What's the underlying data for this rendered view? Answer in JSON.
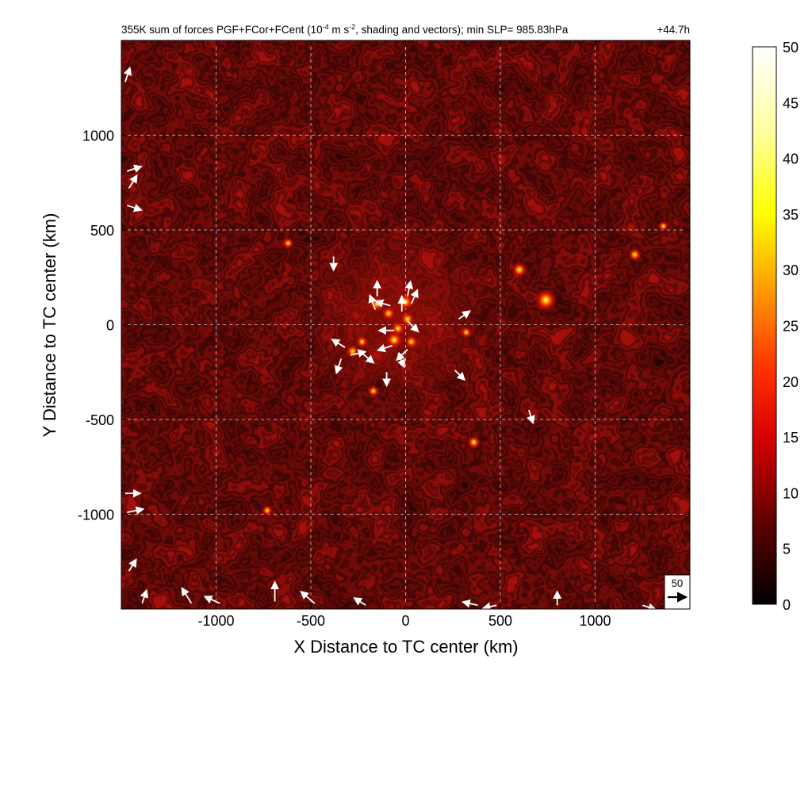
{
  "chart_data": {
    "type": "heatmap",
    "title_parts": {
      "before_exp": "355K sum of forces PGF+FCor+FCent (10",
      "exp1": "-4",
      "mid": " m s",
      "exp2": "-2",
      "after": ", shading and vectors); min SLP= 985.83hPa"
    },
    "time_label": "+44.7h",
    "xlabel": "X Distance to TC center (km)",
    "ylabel": "Y Distance to TC center (km)",
    "xlim": [
      -1500,
      1500
    ],
    "ylim": [
      -1500,
      1500
    ],
    "x_ticks": [
      -1000,
      -500,
      0,
      500,
      1000
    ],
    "y_ticks": [
      -1000,
      -500,
      0,
      500,
      1000
    ],
    "x_tick_labels": [
      "-1000",
      "-500",
      "0",
      "500",
      "1000"
    ],
    "y_tick_labels": [
      "-1000",
      "-500",
      "0",
      "500",
      "1000"
    ],
    "grid": true,
    "colorbar": {
      "range": [
        0,
        50
      ],
      "ticks": [
        0,
        5,
        10,
        15,
        20,
        25,
        30,
        35,
        40,
        45,
        50
      ],
      "tick_labels": [
        "0",
        "5",
        "10",
        "15",
        "20",
        "25",
        "30",
        "35",
        "40",
        "45",
        "50"
      ],
      "colormap": "hot",
      "colors": [
        "#000000",
        "#7a0000",
        "#ff0000",
        "#ff8a00",
        "#ffff00",
        "#ffffff"
      ]
    },
    "reference_vector": {
      "label": "50",
      "magnitude": 50
    },
    "hotspots": [
      {
        "x": -150,
        "y": 110,
        "value": 14
      },
      {
        "x": -90,
        "y": 60,
        "value": 12
      },
      {
        "x": 0,
        "y": 120,
        "value": 16
      },
      {
        "x": 10,
        "y": 30,
        "value": 13
      },
      {
        "x": -60,
        "y": -80,
        "value": 17
      },
      {
        "x": -40,
        "y": -20,
        "value": 13
      },
      {
        "x": 30,
        "y": -90,
        "value": 12
      },
      {
        "x": -280,
        "y": -140,
        "value": 12
      },
      {
        "x": -230,
        "y": -90,
        "value": 10
      },
      {
        "x": 320,
        "y": -40,
        "value": 9
      },
      {
        "x": 740,
        "y": 130,
        "value": 25
      },
      {
        "x": 600,
        "y": 290,
        "value": 15
      },
      {
        "x": 1210,
        "y": 370,
        "value": 12
      },
      {
        "x": 360,
        "y": -620,
        "value": 12
      },
      {
        "x": -170,
        "y": -350,
        "value": 10
      },
      {
        "x": -620,
        "y": 430,
        "value": 9
      },
      {
        "x": -730,
        "y": -980,
        "value": 9
      },
      {
        "x": 1360,
        "y": 520,
        "value": 8
      }
    ],
    "vectors": [
      {
        "x": -150,
        "y": 150,
        "dx": 0,
        "dy": 1,
        "len": 0.5
      },
      {
        "x": -160,
        "y": 80,
        "dx": -0.3,
        "dy": 0.8,
        "len": 0.5
      },
      {
        "x": -80,
        "y": 100,
        "dx": -1,
        "dy": 0.3,
        "len": 0.5
      },
      {
        "x": 10,
        "y": 150,
        "dx": 0.2,
        "dy": 1,
        "len": 0.5
      },
      {
        "x": 30,
        "y": 110,
        "dx": 0.4,
        "dy": 0.9,
        "len": 0.5
      },
      {
        "x": -20,
        "y": 70,
        "dx": 0,
        "dy": 1,
        "len": 0.5
      },
      {
        "x": 10,
        "y": 20,
        "dx": 0.6,
        "dy": -0.6,
        "len": 0.5
      },
      {
        "x": -60,
        "y": -30,
        "dx": -1,
        "dy": 0,
        "len": 0.5
      },
      {
        "x": -70,
        "y": -110,
        "dx": -0.9,
        "dy": -0.3,
        "len": 0.5
      },
      {
        "x": -40,
        "y": -150,
        "dx": 0.4,
        "dy": -0.9,
        "len": 0.5
      },
      {
        "x": 10,
        "y": -130,
        "dx": -0.6,
        "dy": -0.6,
        "len": 0.5
      },
      {
        "x": -320,
        "y": -120,
        "dx": -0.8,
        "dy": 0.5,
        "len": 0.5
      },
      {
        "x": -290,
        "y": -160,
        "dx": 0.9,
        "dy": 0.2,
        "len": 0.5
      },
      {
        "x": -230,
        "y": -150,
        "dx": 0.6,
        "dy": -0.5,
        "len": 0.5
      },
      {
        "x": -340,
        "y": -180,
        "dx": -0.3,
        "dy": -0.9,
        "len": 0.5
      },
      {
        "x": -380,
        "y": 360,
        "dx": 0,
        "dy": -1,
        "len": 0.4
      },
      {
        "x": -100,
        "y": -250,
        "dx": 0,
        "dy": -1,
        "len": 0.4
      },
      {
        "x": 280,
        "y": 30,
        "dx": 0.7,
        "dy": 0.5,
        "len": 0.4
      },
      {
        "x": 260,
        "y": -240,
        "dx": 0.6,
        "dy": -0.6,
        "len": 0.4
      },
      {
        "x": 650,
        "y": -450,
        "dx": 0.3,
        "dy": -0.9,
        "len": 0.4
      },
      {
        "x": -1480,
        "y": 1280,
        "dx": 0.3,
        "dy": 0.9,
        "len": 0.5
      },
      {
        "x": -1470,
        "y": 810,
        "dx": 0.9,
        "dy": 0.3,
        "len": 0.5
      },
      {
        "x": -1460,
        "y": 720,
        "dx": 0.5,
        "dy": 0.8,
        "len": 0.5
      },
      {
        "x": -1470,
        "y": 630,
        "dx": 0.9,
        "dy": -0.3,
        "len": 0.5
      },
      {
        "x": -1480,
        "y": -890,
        "dx": 1,
        "dy": 0,
        "len": 0.5
      },
      {
        "x": -1470,
        "y": -990,
        "dx": 1,
        "dy": 0.2,
        "len": 0.6
      },
      {
        "x": -1460,
        "y": -1300,
        "dx": 0.5,
        "dy": 0.8,
        "len": 0.4
      },
      {
        "x": -1130,
        "y": -1470,
        "dx": -0.5,
        "dy": 0.8,
        "len": 0.7
      },
      {
        "x": -980,
        "y": -1470,
        "dx": -0.9,
        "dy": 0.4,
        "len": 0.6
      },
      {
        "x": -690,
        "y": -1460,
        "dx": 0,
        "dy": 1,
        "len": 0.8
      },
      {
        "x": -480,
        "y": -1470,
        "dx": -0.7,
        "dy": 0.6,
        "len": 0.7
      },
      {
        "x": -1390,
        "y": -1470,
        "dx": 0.3,
        "dy": 0.9,
        "len": 0.4
      },
      {
        "x": -210,
        "y": -1480,
        "dx": -0.8,
        "dy": 0.5,
        "len": 0.4
      },
      {
        "x": 380,
        "y": -1480,
        "dx": -0.9,
        "dy": 0.2,
        "len": 0.5
      },
      {
        "x": 480,
        "y": -1480,
        "dx": -0.9,
        "dy": -0.2,
        "len": 0.4
      },
      {
        "x": 800,
        "y": -1480,
        "dx": 0,
        "dy": 1,
        "len": 0.4
      },
      {
        "x": 1250,
        "y": -1480,
        "dx": 0.9,
        "dy": -0.3,
        "len": 0.4
      }
    ]
  }
}
